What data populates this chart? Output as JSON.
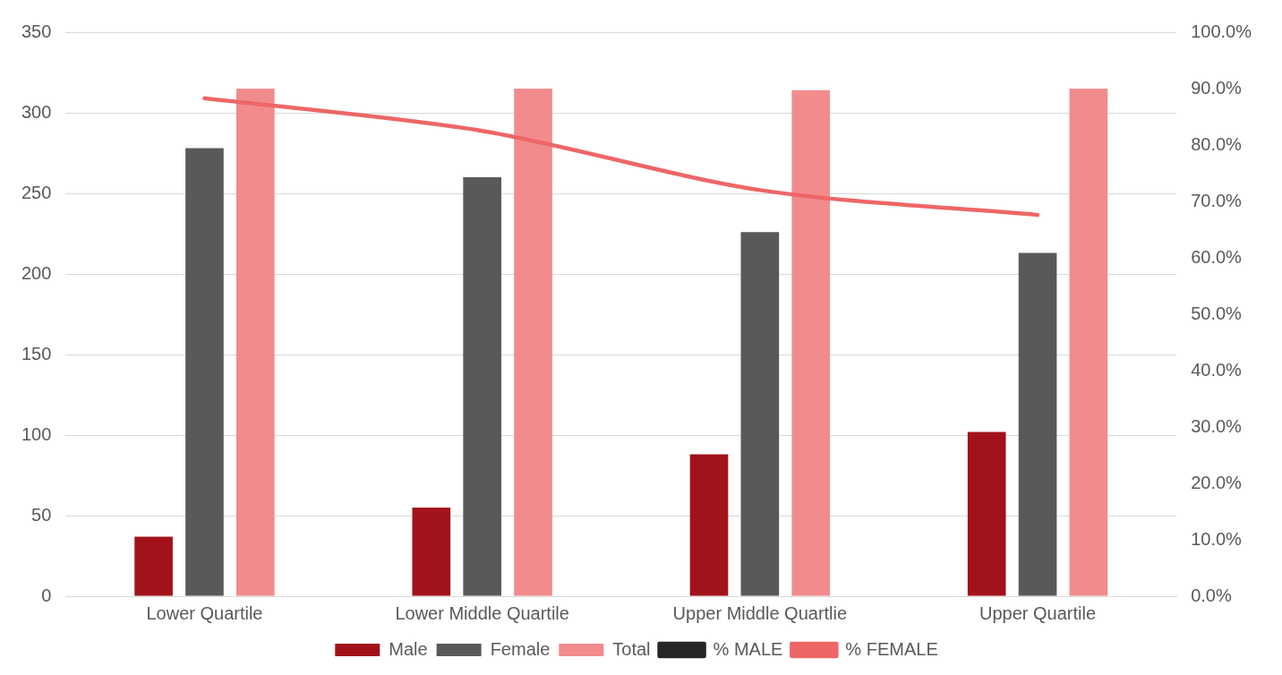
{
  "chart_data": {
    "type": "bar",
    "categories": [
      "Lower Quartile",
      "Lower Middle Quartile",
      "Upper Middle Quartlie",
      "Upper Quartile"
    ],
    "series": [
      {
        "name": "Male",
        "color": "#a2121a",
        "values": [
          37,
          55,
          88,
          102
        ]
      },
      {
        "name": "Female",
        "color": "#595959",
        "values": [
          278,
          260,
          226,
          213
        ]
      },
      {
        "name": "Total",
        "color": "#f28b8c",
        "values": [
          315,
          315,
          314,
          315
        ]
      },
      {
        "name": "% MALE",
        "type": "line",
        "axis": "y2",
        "color": "#262626",
        "values": [
          null,
          null,
          null,
          null
        ]
      },
      {
        "name": "% FEMALE",
        "type": "line",
        "axis": "y2",
        "color": "#ee6666",
        "values": [
          88.3,
          82.5,
          72.0,
          67.6
        ]
      }
    ],
    "ylim": [
      0,
      350
    ],
    "yticks": [
      0,
      50,
      100,
      150,
      200,
      250,
      300,
      350
    ],
    "y2lim": [
      0,
      100
    ],
    "y2ticks": [
      {
        "value": 0,
        "label": "0.0%"
      },
      {
        "value": 10,
        "label": "10.0%"
      },
      {
        "value": 20,
        "label": "20.0%"
      },
      {
        "value": 30,
        "label": "30.0%"
      },
      {
        "value": 40,
        "label": "40.0%"
      },
      {
        "value": 50,
        "label": "50.0%"
      },
      {
        "value": 60,
        "label": "60.0%"
      },
      {
        "value": 70,
        "label": "70.0%"
      },
      {
        "value": 80,
        "label": "80.0%"
      },
      {
        "value": 90,
        "label": "90.0%"
      },
      {
        "value": 100,
        "label": "100.0%"
      }
    ],
    "grid": "y",
    "legend": "bottom",
    "marker": "none"
  }
}
